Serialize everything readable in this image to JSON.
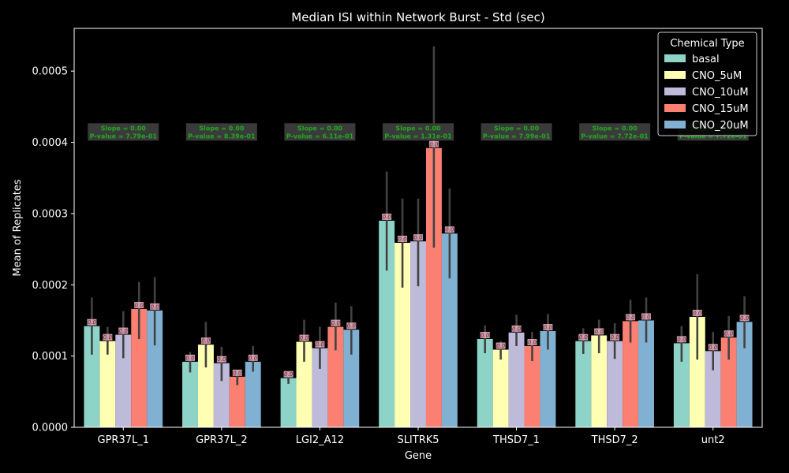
{
  "chart_data": {
    "type": "bar",
    "title": "Median ISI within Network Burst - Std (sec)",
    "xlabel": "Gene",
    "ylabel": "Mean of Replicates",
    "ylim": [
      0,
      0.00056
    ],
    "yticks": [
      "0.0000",
      "0.0001",
      "0.0002",
      "0.0003",
      "0.0004",
      "0.0005"
    ],
    "ytick_values": [
      0,
      0.0001,
      0.0002,
      0.0003,
      0.0004,
      0.0005
    ],
    "categories": [
      "GPR37L_1",
      "GPR37L_2",
      "LGI2_A12",
      "SLITRK5",
      "THSD7_1",
      "THSD7_2",
      "unt2"
    ],
    "legend": {
      "title": "Chemical Type",
      "position": "top-right"
    },
    "series": [
      {
        "name": "basal",
        "color": "#8dd3c7",
        "values": [
          0.000142,
          9.2e-05,
          6.9e-05,
          0.00029,
          0.000124,
          0.000121,
          0.000118
        ],
        "err_low": [
          0.000102,
          7.7e-05,
          6.1e-05,
          0.00022,
          0.000104,
          0.000103,
          9.2e-05
        ],
        "err_high": [
          0.000182,
          0.000106,
          7.7e-05,
          0.000359,
          0.000143,
          0.000139,
          0.000142
        ]
      },
      {
        "name": "CNO_5uM",
        "color": "#ffffb3",
        "values": [
          0.000121,
          0.000116,
          0.00012,
          0.000259,
          0.000109,
          0.000129,
          0.000155
        ],
        "err_low": [
          0.000102,
          8.4e-05,
          9.2e-05,
          0.000196,
          9.5e-05,
          0.000104,
          9.5e-05
        ],
        "err_high": [
          0.000141,
          0.000148,
          0.000151,
          0.000321,
          0.000121,
          0.000151,
          0.000215
        ]
      },
      {
        "name": "CNO_10uM",
        "color": "#bebada",
        "values": [
          0.00013,
          9e-05,
          0.000111,
          0.000261,
          0.000133,
          0.000121,
          0.000107
        ],
        "err_low": [
          9.7e-05,
          6.5e-05,
          8.2e-05,
          0.000198,
          0.000114,
          9.6e-05,
          8e-05
        ],
        "err_high": [
          0.000163,
          0.000113,
          0.000141,
          0.000321,
          0.000158,
          0.000146,
          0.000134
        ]
      },
      {
        "name": "CNO_15uM",
        "color": "#fb8072",
        "values": [
          0.000166,
          7.1e-05,
          0.000141,
          0.000392,
          0.000114,
          0.000149,
          0.000126
        ],
        "err_low": [
          0.000124,
          5.9e-05,
          0.000108,
          0.000252,
          9.3e-05,
          0.000119,
          9.5e-05
        ],
        "err_high": [
          0.000204,
          8e-05,
          0.000175,
          0.000535,
          0.000134,
          0.000179,
          0.000156
        ]
      },
      {
        "name": "CNO_20uM",
        "color": "#80b1d3",
        "values": [
          0.000164,
          9.2e-05,
          0.000137,
          0.000272,
          0.000135,
          0.00015,
          0.000148
        ],
        "err_low": [
          0.000115,
          7.8e-05,
          0.000102,
          0.000209,
          0.000109,
          0.000119,
          0.000111
        ],
        "err_high": [
          0.000211,
          0.000114,
          0.00017,
          0.000335,
          0.000159,
          0.000182,
          0.000184
        ]
      }
    ],
    "bar_label": "0.0",
    "annotation_y": 0.000408,
    "annotations": [
      {
        "slope": "Slope = 0.00",
        "pvalue": "P-value = 7.79e-01"
      },
      {
        "slope": "Slope = 0.00",
        "pvalue": "P-value = 8.39e-01"
      },
      {
        "slope": "Slope = 0.00",
        "pvalue": "P-value = 6.11e-01"
      },
      {
        "slope": "Slope = 0.00",
        "pvalue": "P-value = 1.31e-01"
      },
      {
        "slope": "Slope = 0.00",
        "pvalue": "P-value = 7.99e-01"
      },
      {
        "slope": "Slope = 0.00",
        "pvalue": "P-value = 7.72e-01"
      },
      {
        "slope": "Slope = 0.00",
        "pvalue": "P-value = 7.72e-01"
      }
    ]
  }
}
